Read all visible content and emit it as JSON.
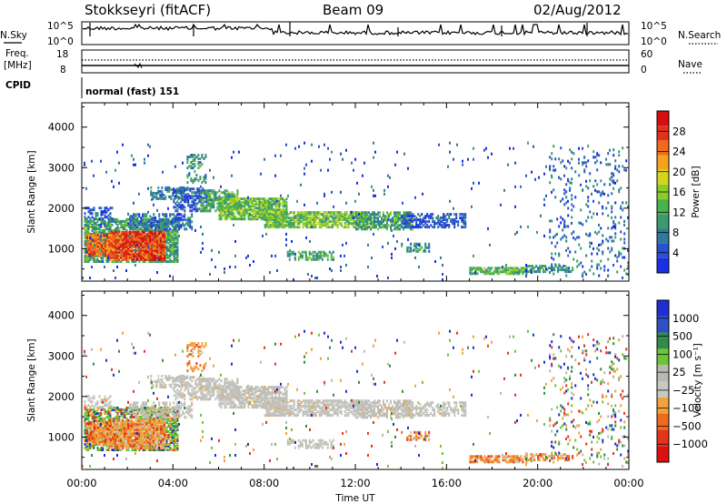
{
  "header": {
    "station": "Stokkseyri (fitACF)",
    "beam": "Beam 09",
    "date": "02/Aug/2012"
  },
  "noise_panel": {
    "left_label": "N.Sky",
    "right_label": "N.Search",
    "left_ticks": [
      "10^5",
      "10^0"
    ],
    "right_ticks": [
      "10^5",
      "10^0"
    ]
  },
  "freq_panel": {
    "left_label_1": "Freq.",
    "left_label_2": "[MHz]",
    "left_ticks": [
      "18",
      "8"
    ],
    "right_label": "Nave",
    "right_ticks": [
      "60",
      "0"
    ]
  },
  "cpid_panel": {
    "label": "CPID",
    "mode": "normal (fast) 151"
  },
  "chart_data": [
    {
      "type": "heatmap",
      "quantity": "power",
      "ylabel": "Slant Range [km]",
      "xlabel": "",
      "ylim": [
        200,
        4600
      ],
      "xlim": [
        "00:00",
        "24:00"
      ],
      "y_ticks": [
        "1000",
        "2000",
        "3000",
        "4000"
      ],
      "colorbar": {
        "label": "Power [dB]",
        "ticks": [
          "4",
          "8",
          "12",
          "16",
          "20",
          "24",
          "28"
        ],
        "colors": [
          "#1a2ee8",
          "#2a4fd0",
          "#2f7a9a",
          "#3b9a70",
          "#49b24a",
          "#8bcc2a",
          "#d6d31f",
          "#f5a21f",
          "#f06a1a",
          "#e2331a",
          "#d60e0e"
        ]
      }
    },
    {
      "type": "heatmap",
      "quantity": "velocity",
      "ylabel": "Slant Range [km]",
      "xlabel": "Time UT",
      "ylim": [
        200,
        4600
      ],
      "xlim": [
        "00:00",
        "24:00"
      ],
      "y_ticks": [
        "1000",
        "2000",
        "3000",
        "4000"
      ],
      "x_ticks": [
        "00:00",
        "04:00",
        "08:00",
        "12:00",
        "16:00",
        "20:00",
        "00:00"
      ],
      "colorbar": {
        "label": "Velocity [m s⁻¹]",
        "ticks": [
          "1000",
          "500",
          "100",
          "25",
          "−25",
          "−100",
          "−500",
          "−1000"
        ],
        "colors": [
          "#1d2fd4",
          "#2f4fc2",
          "#2e8b4a",
          "#6cc43a",
          "#b9b9b4",
          "#c8c8c2",
          "#f2a23c",
          "#ee6a1c",
          "#e6331c",
          "#dd1010"
        ]
      }
    }
  ]
}
